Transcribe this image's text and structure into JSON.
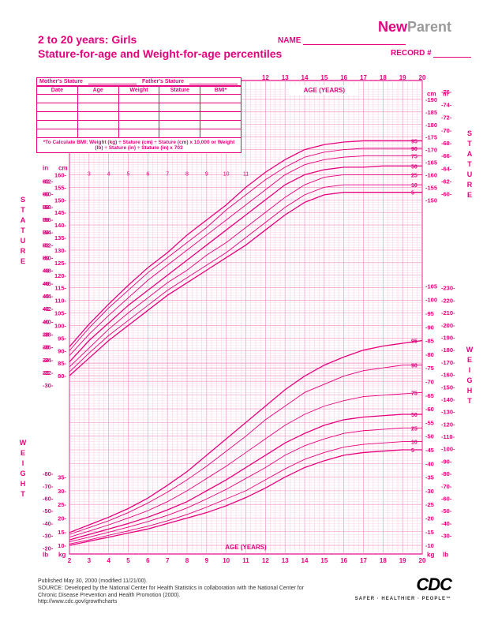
{
  "logo": {
    "part1": "New",
    "part2": "Parent"
  },
  "title": {
    "line1": "2 to 20 years: Girls",
    "line2": "Stature-for-age and Weight-for-age percentiles"
  },
  "fields": {
    "name": "NAME",
    "record": "RECORD #"
  },
  "data_table": {
    "mother": "Mother's Stature",
    "father": "Father's Stature",
    "columns": [
      "Date",
      "Age",
      "Weight",
      "Stature",
      "BMI*"
    ],
    "empty_rows": 5,
    "note": "*To Calculate BMI: Weight (kg) ÷ Stature (cm) ÷ Stature (cm) x 10,000 or Weight (lb) ÷ Stature (in) ÷ Stature (in) x 703"
  },
  "side_labels": {
    "stature": "STATURE",
    "weight": "WEIGHT"
  },
  "axes": {
    "age_label": "AGE (YEARS)",
    "unit_in": "in",
    "unit_cm": "cm",
    "unit_lb": "lb",
    "unit_kg": "kg",
    "age_top_ticks": [
      12,
      13,
      14,
      15,
      16,
      17,
      18,
      19,
      20
    ],
    "age_bottom_ticks": [
      2,
      3,
      4,
      5,
      6,
      7,
      8,
      9,
      10,
      11,
      12,
      13,
      14,
      15,
      16,
      17,
      18,
      19,
      20
    ],
    "age_mid_ticks": [
      3,
      4,
      5,
      6,
      7,
      8,
      9,
      10,
      11
    ],
    "stature_left_in": [
      30,
      32,
      34,
      36,
      38,
      40,
      42,
      44,
      46,
      48,
      50,
      52,
      54,
      56,
      58,
      60,
      62
    ],
    "stature_left_cm": [
      80,
      85,
      90,
      95,
      100,
      105,
      110,
      115,
      120,
      125,
      130,
      135,
      140,
      145,
      150,
      155,
      160
    ],
    "stature_right_cm": [
      150,
      155,
      160,
      165,
      170,
      175,
      180,
      185,
      190
    ],
    "stature_right_in": [
      60,
      62,
      64,
      66,
      68,
      70,
      72,
      74,
      76
    ],
    "weight_left_lb": [
      20,
      30,
      40,
      50,
      60,
      70,
      80
    ],
    "weight_left_kg": [
      10,
      15,
      20,
      25,
      30,
      35
    ],
    "weight_right_kg": [
      10,
      15,
      20,
      25,
      30,
      35,
      40,
      45,
      50,
      55,
      60,
      65,
      70,
      75,
      80,
      85,
      90,
      95,
      100,
      105
    ],
    "weight_right_lb": [
      30,
      40,
      50,
      60,
      70,
      80,
      90,
      100,
      110,
      120,
      130,
      140,
      150,
      160,
      170,
      180,
      190,
      200,
      210,
      220,
      230
    ]
  },
  "chart": {
    "background_color": "#ffffff",
    "grid_color": "#f7bcd9",
    "grid_major_color": "#ef8abf",
    "line_color": "#e6007e",
    "text_color": "#e6007e",
    "pct_labels": [
      "5",
      "10",
      "25",
      "50",
      "75",
      "90",
      "95"
    ],
    "age_range": [
      2,
      20
    ],
    "stature_cm_range": [
      75,
      195
    ],
    "weight_kg_range": [
      8,
      108
    ],
    "stature_curves": {
      "5": {
        "2": 80,
        "3": 87,
        "4": 94,
        "5": 100,
        "6": 106,
        "7": 112,
        "8": 117,
        "9": 122,
        "10": 127,
        "11": 132,
        "12": 138,
        "13": 144,
        "14": 149,
        "15": 152,
        "16": 153,
        "17": 153,
        "18": 153,
        "19": 153,
        "20": 153
      },
      "10": {
        "2": 81.5,
        "3": 89,
        "4": 96,
        "5": 102,
        "6": 108,
        "7": 114,
        "8": 119,
        "9": 124,
        "10": 129,
        "11": 135,
        "12": 141,
        "13": 147,
        "14": 152,
        "15": 155,
        "16": 156,
        "17": 156,
        "18": 156,
        "19": 156,
        "20": 156
      },
      "25": {
        "2": 83.5,
        "3": 91,
        "4": 98.5,
        "5": 105,
        "6": 111,
        "7": 117,
        "8": 122,
        "9": 128,
        "10": 133,
        "11": 139,
        "12": 145,
        "13": 151,
        "14": 156,
        "15": 159,
        "16": 160,
        "17": 160,
        "18": 160,
        "19": 160,
        "20": 160
      },
      "50": {
        "2": 85.5,
        "3": 94,
        "4": 101,
        "5": 108,
        "6": 114,
        "7": 120,
        "8": 126,
        "9": 132,
        "10": 138,
        "11": 144,
        "12": 150,
        "13": 156,
        "14": 160,
        "15": 162,
        "16": 163,
        "17": 163,
        "18": 163.5,
        "19": 163.5,
        "20": 163.5
      },
      "75": {
        "2": 88,
        "3": 96.5,
        "4": 104,
        "5": 111,
        "6": 118,
        "7": 124,
        "8": 130,
        "9": 136,
        "10": 142,
        "11": 148,
        "12": 154,
        "13": 160,
        "14": 164,
        "15": 166,
        "16": 167,
        "17": 167.5,
        "18": 167.5,
        "19": 167.5,
        "20": 167.5
      },
      "90": {
        "2": 90,
        "3": 99,
        "4": 107,
        "5": 114,
        "6": 121,
        "7": 127,
        "8": 133,
        "9": 139,
        "10": 146,
        "11": 152,
        "12": 158,
        "13": 163,
        "14": 167,
        "15": 169,
        "16": 170,
        "17": 170.5,
        "18": 170.5,
        "19": 170.5,
        "20": 170.5
      },
      "95": {
        "2": 91.5,
        "3": 100.5,
        "4": 108.5,
        "5": 116,
        "6": 123,
        "7": 129,
        "8": 136,
        "9": 142,
        "10": 148,
        "11": 155,
        "12": 161,
        "13": 166,
        "14": 170,
        "15": 172,
        "16": 173,
        "17": 173.5,
        "18": 173.5,
        "19": 173.5,
        "20": 173.5
      }
    },
    "weight_curves": {
      "5": {
        "2": 10,
        "3": 11.5,
        "4": 13,
        "5": 14.5,
        "6": 16,
        "7": 18,
        "8": 20,
        "9": 22,
        "10": 24.5,
        "11": 27.5,
        "12": 31,
        "13": 35,
        "14": 38.5,
        "15": 41,
        "16": 43,
        "17": 44,
        "18": 44.5,
        "19": 45,
        "20": 45
      },
      "10": {
        "2": 10.5,
        "3": 12,
        "4": 13.7,
        "5": 15.3,
        "6": 17,
        "7": 19,
        "8": 21.3,
        "9": 24,
        "10": 27,
        "11": 30,
        "12": 34,
        "13": 38,
        "14": 41.5,
        "15": 44,
        "16": 46,
        "17": 47,
        "18": 47.5,
        "19": 48,
        "20": 48
      },
      "25": {
        "2": 11.3,
        "3": 13,
        "4": 14.8,
        "5": 16.7,
        "6": 18.7,
        "7": 21,
        "8": 23.7,
        "9": 27,
        "10": 30.5,
        "11": 34.5,
        "12": 38.5,
        "13": 43,
        "14": 46.5,
        "15": 49,
        "16": 51,
        "17": 52,
        "18": 52.5,
        "19": 53,
        "20": 53
      },
      "50": {
        "2": 12,
        "3": 14,
        "4": 16,
        "5": 18,
        "6": 20.3,
        "7": 23,
        "8": 26,
        "9": 30,
        "10": 34,
        "11": 38.5,
        "12": 43,
        "13": 47.5,
        "14": 51,
        "15": 54,
        "16": 56,
        "17": 57,
        "18": 57.5,
        "19": 58,
        "20": 58
      },
      "75": {
        "2": 13,
        "3": 15.2,
        "4": 17.5,
        "5": 20,
        "6": 22.7,
        "7": 26,
        "8": 30,
        "9": 34.5,
        "10": 39,
        "11": 44,
        "12": 49,
        "13": 54,
        "14": 58,
        "15": 61,
        "16": 63,
        "17": 64.5,
        "18": 65,
        "19": 65.5,
        "20": 66
      },
      "90": {
        "2": 14,
        "3": 16.5,
        "4": 19,
        "5": 22,
        "6": 25.5,
        "7": 29.5,
        "8": 34,
        "9": 39,
        "10": 44.5,
        "11": 50,
        "12": 56,
        "13": 61,
        "14": 66,
        "15": 69,
        "16": 72,
        "17": 74,
        "18": 75,
        "19": 76,
        "20": 76
      },
      "95": {
        "2": 14.7,
        "3": 17.5,
        "4": 20.3,
        "5": 23.5,
        "6": 27.3,
        "7": 32,
        "8": 37,
        "9": 43,
        "10": 49,
        "11": 55,
        "12": 61,
        "13": 67,
        "14": 72,
        "15": 76,
        "16": 79,
        "17": 81.5,
        "18": 83,
        "19": 84,
        "20": 85
      }
    }
  },
  "footer": {
    "pub": "Published May 30, 2000 (modified 11/21/00).",
    "src": "SOURCE: Developed by the National Center for Health Statistics in collaboration with the National Center for Chronic Disease Prevention and Health Promotion (2000).",
    "url": "http://www.cdc.gov/growthcharts"
  },
  "cdc": {
    "logo": "CDC",
    "tag": "SAFER · HEALTHIER · PEOPLE™"
  }
}
